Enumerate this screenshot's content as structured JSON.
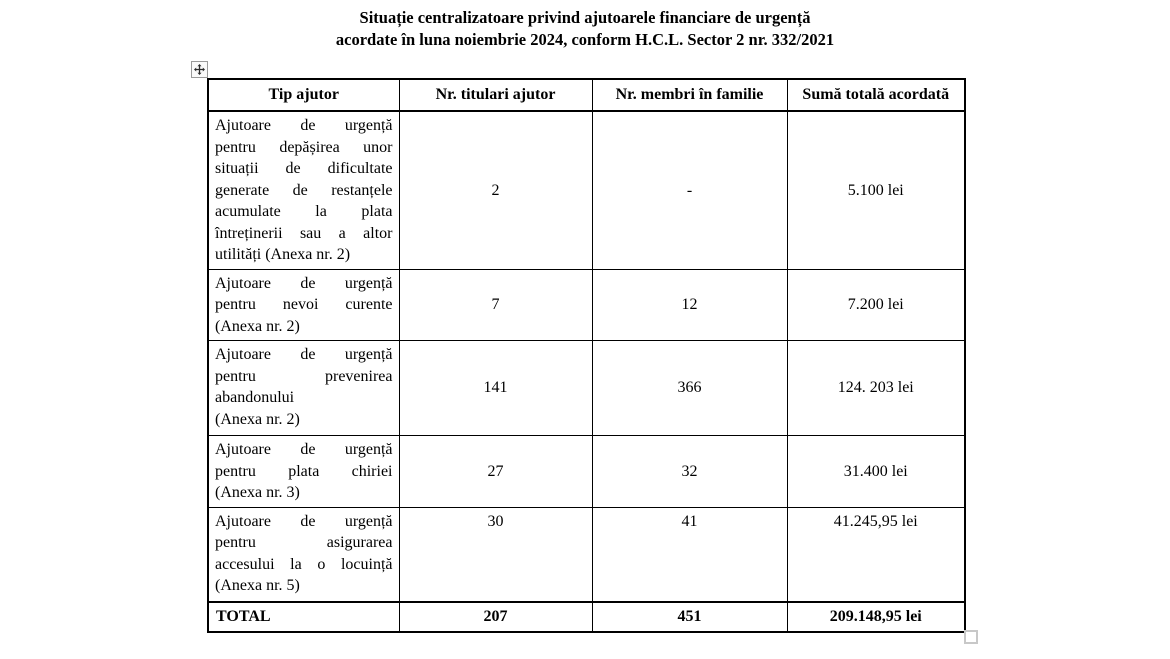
{
  "title": {
    "line1": "Situație centralizatoare privind ajutoarele financiare de urgență",
    "line2": "acordate în luna noiembrie 2024, conform H.C.L. Sector 2 nr. 332/2021"
  },
  "colors": {
    "text": "#000000",
    "background": "#ffffff",
    "table_border": "#000000",
    "handle_border": "#9a9a9a"
  },
  "icons": {
    "table_move_handle": "four-way-move-arrow-icon",
    "table_resize_handle": "resize-square-icon"
  },
  "table": {
    "headers": [
      "Tip ajutor",
      "Nr. titulari ajutor",
      "Nr. membri în familie",
      "Sumă totală acordată"
    ],
    "rows": [
      {
        "tip": "Ajutoare de urgență\npentru depășirea unor\nsituații de dificultate\ngenerate de restanțele\nacumulate la plata\nîntreținerii sau a altor\nutilități (Anexa nr. 2)",
        "titulari": "2",
        "membri": "-",
        "suma": "5.100 lei"
      },
      {
        "tip": "Ajutoare de urgență\npentru nevoi curente\n(Anexa nr. 2)",
        "titulari": "7",
        "membri": "12",
        "suma": "7.200 lei"
      },
      {
        "tip": "Ajutoare de urgență\npentru prevenirea\nabandonului\n(Anexa nr. 2)",
        "titulari": "141",
        "membri": "366",
        "suma": "124. 203 lei"
      },
      {
        "tip": "Ajutoare de urgență\npentru plata chiriei\n(Anexa nr. 3)",
        "titulari": "27",
        "membri": "32",
        "suma": "31.400 lei"
      },
      {
        "tip": "Ajutoare de urgență\npentru asigurarea\naccesului la o locuință\n(Anexa nr. 5)",
        "titulari": "30",
        "membri": "41",
        "suma": "41.245,95 lei"
      }
    ],
    "total": {
      "label": "TOTAL",
      "titulari": "207",
      "membri": "451",
      "suma": "209.148,95 lei"
    }
  }
}
